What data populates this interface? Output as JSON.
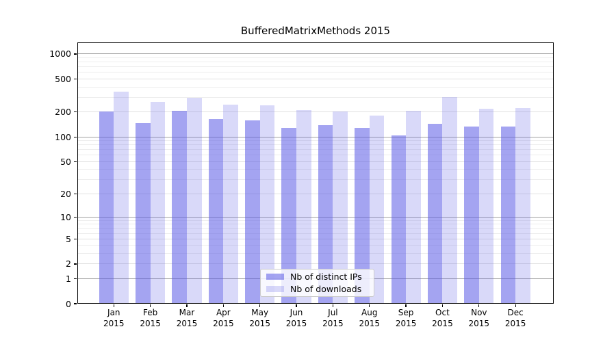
{
  "title": "BufferedMatrixMethods 2015",
  "chart_data": {
    "type": "bar",
    "title": "BufferedMatrixMethods 2015",
    "xlabel": "",
    "ylabel": "",
    "categories": [
      "Jan 2015",
      "Feb 2015",
      "Mar 2015",
      "Apr 2015",
      "May 2015",
      "Jun 2015",
      "Jul 2015",
      "Aug 2015",
      "Sep 2015",
      "Oct 2015",
      "Nov 2015",
      "Dec 2015"
    ],
    "series": [
      {
        "name": "Nb of distinct IPs",
        "color": "rgba(90,90,230,0.55)",
        "values": [
          204,
          146,
          208,
          165,
          160,
          128,
          138,
          129,
          105,
          145,
          133,
          134
        ]
      },
      {
        "name": "Nb of downloads",
        "color": "rgba(90,90,230,0.23)",
        "values": [
          354,
          265,
          298,
          246,
          240,
          212,
          203,
          180,
          207,
          300,
          218,
          225
        ]
      }
    ],
    "yscale": "log1p",
    "yticks": [
      0,
      1,
      2,
      5,
      10,
      20,
      50,
      100,
      200,
      500,
      1000
    ],
    "ylim": [
      0,
      1380
    ],
    "grid": true,
    "gridline_colors": {
      "major": "#a0a0a0",
      "medium": "#e0e0e0",
      "minor": "#ededed"
    },
    "legend_position": "lower center"
  }
}
